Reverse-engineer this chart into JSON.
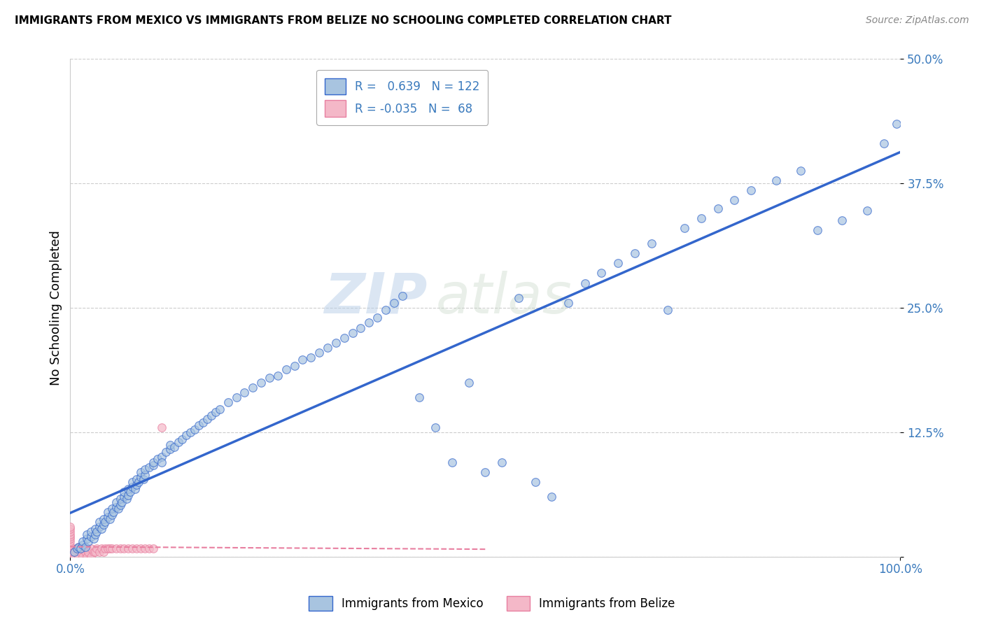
{
  "title": "IMMIGRANTS FROM MEXICO VS IMMIGRANTS FROM BELIZE NO SCHOOLING COMPLETED CORRELATION CHART",
  "source": "Source: ZipAtlas.com",
  "ylabel": "No Schooling Completed",
  "xlim": [
    0,
    1.0
  ],
  "ylim": [
    0,
    0.5
  ],
  "x_ticks": [
    0.0,
    1.0
  ],
  "x_tick_labels": [
    "0.0%",
    "100.0%"
  ],
  "y_ticks": [
    0.0,
    0.125,
    0.25,
    0.375,
    0.5
  ],
  "y_tick_labels": [
    "",
    "12.5%",
    "25.0%",
    "37.5%",
    "50.0%"
  ],
  "color_mexico": "#a8c4e0",
  "color_belize": "#f4b8c8",
  "line_color_mexico": "#3366cc",
  "line_color_belize": "#e87fa0",
  "watermark_zip": "ZIP",
  "watermark_atlas": "atlas",
  "mexico_x": [
    0.005,
    0.008,
    0.01,
    0.012,
    0.015,
    0.015,
    0.018,
    0.02,
    0.02,
    0.022,
    0.025,
    0.025,
    0.028,
    0.03,
    0.03,
    0.032,
    0.035,
    0.035,
    0.038,
    0.04,
    0.04,
    0.042,
    0.045,
    0.045,
    0.048,
    0.05,
    0.05,
    0.052,
    0.055,
    0.055,
    0.058,
    0.06,
    0.06,
    0.062,
    0.065,
    0.065,
    0.068,
    0.07,
    0.07,
    0.072,
    0.075,
    0.075,
    0.078,
    0.08,
    0.08,
    0.082,
    0.085,
    0.085,
    0.088,
    0.09,
    0.09,
    0.095,
    0.1,
    0.1,
    0.105,
    0.11,
    0.11,
    0.115,
    0.12,
    0.12,
    0.125,
    0.13,
    0.135,
    0.14,
    0.145,
    0.15,
    0.155,
    0.16,
    0.165,
    0.17,
    0.175,
    0.18,
    0.19,
    0.2,
    0.21,
    0.22,
    0.23,
    0.24,
    0.25,
    0.26,
    0.27,
    0.28,
    0.29,
    0.3,
    0.31,
    0.32,
    0.33,
    0.34,
    0.35,
    0.36,
    0.37,
    0.38,
    0.39,
    0.4,
    0.42,
    0.44,
    0.46,
    0.48,
    0.5,
    0.52,
    0.54,
    0.56,
    0.58,
    0.6,
    0.62,
    0.64,
    0.66,
    0.68,
    0.7,
    0.72,
    0.74,
    0.76,
    0.78,
    0.8,
    0.82,
    0.85,
    0.88,
    0.9,
    0.93,
    0.96,
    0.98,
    0.995
  ],
  "mexico_y": [
    0.005,
    0.008,
    0.01,
    0.008,
    0.012,
    0.015,
    0.01,
    0.018,
    0.022,
    0.015,
    0.02,
    0.025,
    0.018,
    0.022,
    0.028,
    0.025,
    0.03,
    0.035,
    0.028,
    0.032,
    0.038,
    0.035,
    0.04,
    0.045,
    0.038,
    0.042,
    0.048,
    0.045,
    0.05,
    0.055,
    0.048,
    0.052,
    0.058,
    0.055,
    0.06,
    0.065,
    0.058,
    0.062,
    0.068,
    0.065,
    0.07,
    0.075,
    0.068,
    0.072,
    0.078,
    0.075,
    0.08,
    0.085,
    0.078,
    0.082,
    0.088,
    0.09,
    0.092,
    0.095,
    0.098,
    0.1,
    0.095,
    0.105,
    0.108,
    0.112,
    0.11,
    0.115,
    0.118,
    0.122,
    0.125,
    0.128,
    0.132,
    0.135,
    0.138,
    0.142,
    0.145,
    0.148,
    0.155,
    0.16,
    0.165,
    0.17,
    0.175,
    0.18,
    0.182,
    0.188,
    0.192,
    0.198,
    0.2,
    0.205,
    0.21,
    0.215,
    0.22,
    0.225,
    0.23,
    0.235,
    0.24,
    0.248,
    0.255,
    0.262,
    0.16,
    0.13,
    0.095,
    0.175,
    0.085,
    0.095,
    0.26,
    0.075,
    0.06,
    0.255,
    0.275,
    0.285,
    0.295,
    0.305,
    0.315,
    0.248,
    0.33,
    0.34,
    0.35,
    0.358,
    0.368,
    0.378,
    0.388,
    0.328,
    0.338,
    0.348,
    0.415,
    0.435
  ],
  "belize_x": [
    0.0,
    0.0,
    0.0,
    0.0,
    0.0,
    0.0,
    0.0,
    0.0,
    0.0,
    0.0,
    0.0,
    0.0,
    0.0,
    0.0,
    0.0,
    0.0,
    0.0,
    0.0,
    0.0,
    0.0,
    0.0,
    0.0,
    0.0,
    0.0,
    0.0,
    0.0,
    0.0,
    0.0,
    0.0,
    0.0,
    0.0,
    0.0,
    0.0,
    0.005,
    0.005,
    0.008,
    0.01,
    0.01,
    0.012,
    0.015,
    0.015,
    0.018,
    0.02,
    0.02,
    0.022,
    0.025,
    0.025,
    0.028,
    0.03,
    0.032,
    0.035,
    0.038,
    0.04,
    0.042,
    0.045,
    0.048,
    0.05,
    0.055,
    0.06,
    0.065,
    0.07,
    0.075,
    0.08,
    0.085,
    0.09,
    0.095,
    0.1,
    0.11
  ],
  "belize_y": [
    0.0,
    0.0,
    0.0,
    0.0,
    0.0,
    0.0,
    0.0,
    0.0,
    0.0,
    0.0,
    0.0,
    0.0,
    0.0,
    0.0,
    0.0,
    0.0,
    0.0,
    0.0,
    0.0,
    0.0,
    0.005,
    0.005,
    0.008,
    0.01,
    0.01,
    0.012,
    0.015,
    0.018,
    0.02,
    0.022,
    0.025,
    0.028,
    0.03,
    0.0,
    0.005,
    0.008,
    0.0,
    0.01,
    0.005,
    0.0,
    0.008,
    0.005,
    0.0,
    0.008,
    0.005,
    0.0,
    0.008,
    0.005,
    0.005,
    0.008,
    0.005,
    0.008,
    0.005,
    0.008,
    0.008,
    0.008,
    0.008,
    0.008,
    0.008,
    0.008,
    0.008,
    0.008,
    0.008,
    0.008,
    0.008,
    0.008,
    0.008,
    0.13
  ],
  "legend_bottom_1": "Immigrants from Mexico",
  "legend_bottom_2": "Immigrants from Belize"
}
